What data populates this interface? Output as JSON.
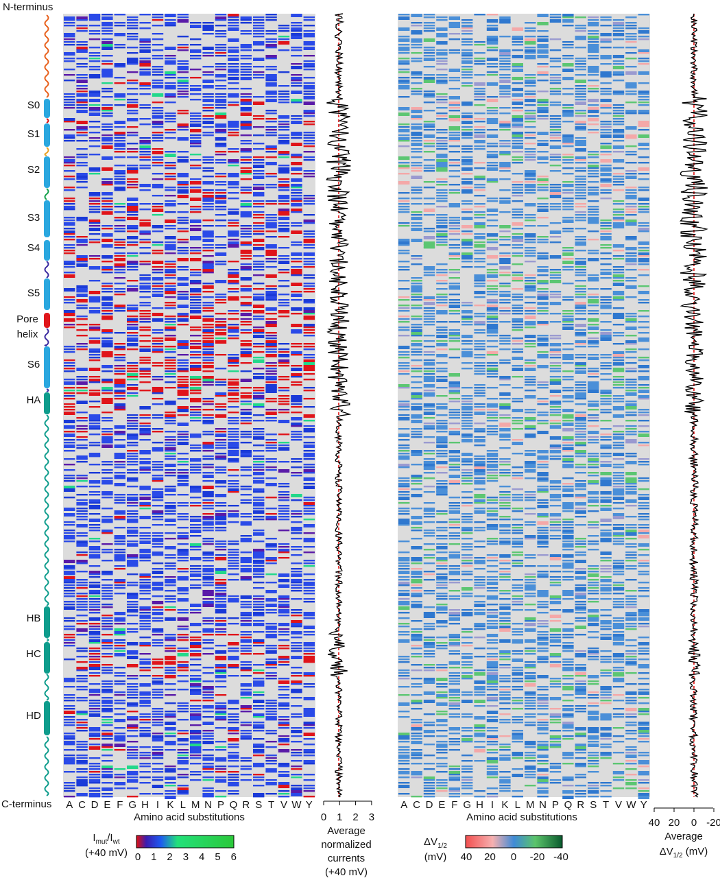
{
  "labels": {
    "n_terminus": "N-terminus",
    "c_terminus": "C-terminus"
  },
  "segments": [
    {
      "label": "S0",
      "kind": "helix",
      "color": "#2aa7df"
    },
    {
      "label": "S1",
      "kind": "helix",
      "color": "#2aa7df"
    },
    {
      "label": "S2",
      "kind": "helix",
      "color": "#2aa7df"
    },
    {
      "label": "S3",
      "kind": "helix",
      "color": "#2aa7df"
    },
    {
      "label": "S4",
      "kind": "helix",
      "color": "#2aa7df"
    },
    {
      "label": "S5",
      "kind": "helix",
      "color": "#2aa7df"
    },
    {
      "label": "Pore",
      "label2": "helix",
      "kind": "helix",
      "color": "#e0161b"
    },
    {
      "label": "S6",
      "kind": "helix",
      "color": "#2aa7df"
    },
    {
      "label": "HA",
      "kind": "helix",
      "color": "#0e9c8c"
    },
    {
      "label": "HB",
      "kind": "helix",
      "color": "#0e9c8c"
    },
    {
      "label": "HC",
      "kind": "helix",
      "color": "#0e9c8c"
    },
    {
      "label": "HD",
      "kind": "helix",
      "color": "#0e9c8c"
    }
  ],
  "chart_data": [
    {
      "type": "heatmap",
      "categories": [
        "A",
        "C",
        "D",
        "E",
        "F",
        "G",
        "H",
        "I",
        "K",
        "L",
        "M",
        "N",
        "P",
        "Q",
        "R",
        "S",
        "T",
        "V",
        "W",
        "Y"
      ],
      "xlabel": "Amino acid substitutions",
      "colorbar": {
        "title": "I",
        "title_sub_1": "mut",
        "title_mid": "/I",
        "title_sub_2": "wt",
        "title_line2": "(+40 mV)",
        "ticks": [
          "0",
          "1",
          "2",
          "3",
          "4",
          "5",
          "6"
        ],
        "range": [
          0,
          6
        ],
        "colors": [
          "#e01010",
          "#2a2ad0",
          "#1e5af0",
          "#22e07a",
          "#2bc83a"
        ]
      },
      "background": "#dcdcdc"
    },
    {
      "type": "line",
      "xlabel_lines": [
        "Average",
        "normalized",
        "currents",
        "(+40 mV)"
      ],
      "xticks": [
        "0",
        "1",
        "2",
        "3"
      ],
      "xlim": [
        0,
        3
      ],
      "reference_value": 1,
      "reference_color": "#e01010",
      "line_color": "#000000"
    },
    {
      "type": "heatmap",
      "categories": [
        "A",
        "C",
        "D",
        "E",
        "F",
        "G",
        "H",
        "I",
        "K",
        "L",
        "M",
        "N",
        "P",
        "Q",
        "R",
        "S",
        "T",
        "V",
        "W",
        "Y"
      ],
      "xlabel": "Amino acid substitutions",
      "colorbar": {
        "title": "ΔV",
        "title_sub": "1/2",
        "title_line2": "(mV)",
        "ticks": [
          "40",
          "20",
          "0",
          "-20",
          "-40"
        ],
        "range": [
          40,
          -40
        ],
        "colors": [
          "#f24f4f",
          "#f6b0b0",
          "#3f8ad6",
          "#5bc46a",
          "#0a5a2e"
        ]
      },
      "background": "#dcdcdc"
    },
    {
      "type": "line",
      "xlabel_line1": "Average",
      "xlabel_line2": "ΔV",
      "xlabel_line2_sub": "1/2",
      "xlabel_line2_unit": " (mV)",
      "xticks": [
        "40",
        "20",
        "0",
        "-20"
      ],
      "xlim": [
        40,
        -40
      ],
      "reference_value": 0,
      "reference_color": "#e01010",
      "line_color": "#000000"
    }
  ]
}
